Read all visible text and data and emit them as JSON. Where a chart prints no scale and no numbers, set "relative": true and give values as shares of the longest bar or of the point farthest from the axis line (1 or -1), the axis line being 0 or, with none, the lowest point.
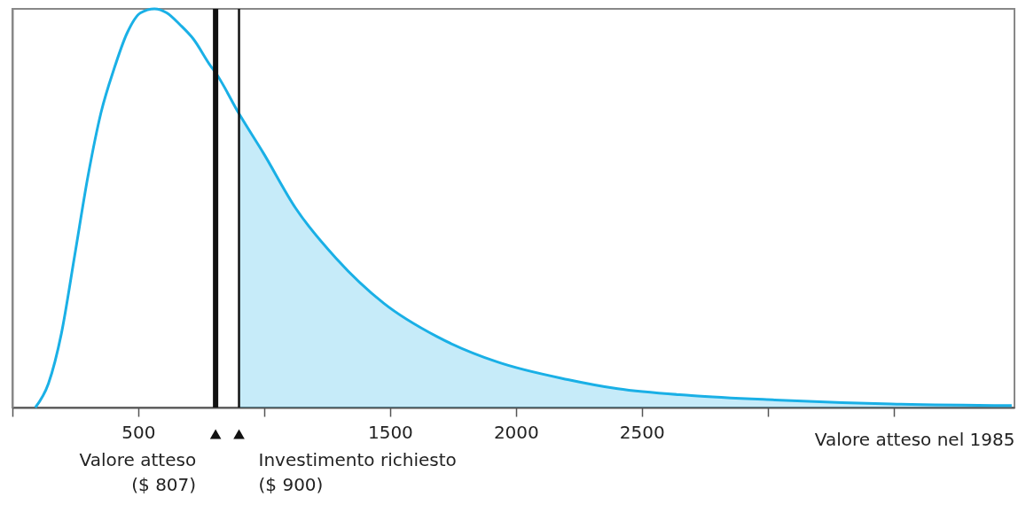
{
  "chart_data": {
    "type": "line",
    "relative": true,
    "xlabel": "Valore atteso nel 1985",
    "xlim": [
      0,
      3980
    ],
    "xticks": [
      {
        "value": 0,
        "label": null
      },
      500,
      {
        "value": 1000,
        "label": null
      },
      1500,
      2000,
      2500,
      {
        "value": 3000,
        "label": null
      },
      {
        "value": 3500,
        "label": null
      }
    ],
    "grid": false,
    "marker": "none",
    "line_style": "solid",
    "series": [
      {
        "color": "#1ab0e6",
        "x": [
          91,
          143,
          195,
          247,
          300,
          352,
          404,
          456,
          509,
          564,
          613,
          666,
          718,
          787,
          807,
          900,
          997,
          1125,
          1286,
          1474,
          1686,
          1927,
          2206,
          2404,
          2697,
          3028,
          3491,
          3969
        ],
        "values": [
          0,
          0.06,
          0.187,
          0.38,
          0.58,
          0.74,
          0.85,
          0.94,
          0.99,
          1,
          0.99,
          0.96,
          0.925,
          0.857,
          0.84,
          0.737,
          0.638,
          0.5,
          0.374,
          0.262,
          0.178,
          0.114,
          0.07,
          0.047,
          0.03,
          0.019,
          0.009,
          0.005
        ]
      },
      {
        "type": "area",
        "color": "#1ab0e6",
        "x": [
          900,
          997,
          1125,
          1286,
          1474,
          1686,
          1927,
          2206,
          2404,
          2697,
          3028,
          3491,
          3969
        ],
        "values": [
          0.737,
          0.638,
          0.5,
          0.374,
          0.262,
          0.178,
          0.114,
          0.07,
          0.047,
          0.03,
          0.019,
          0.009,
          0.005
        ]
      }
    ],
    "ref_lines": [
      {
        "axis": "x",
        "value": 807,
        "label": "Valore atteso\n($ 807)",
        "color": "#111111"
      },
      {
        "axis": "x",
        "value": 900,
        "label": "Investimento richiesto\n($ 900)",
        "color": "#111111"
      }
    ]
  }
}
